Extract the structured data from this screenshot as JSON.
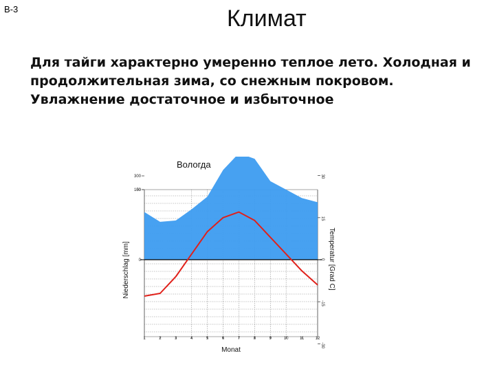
{
  "slide": {
    "code": "В-3",
    "title": "Климат",
    "text_lines": [
      "Для тайги характерно умеренно теплое лето. Холодная и",
      "продолжительная зима,  со снежным покровом.",
      "Увлажнение достаточное и избыточное"
    ]
  },
  "chart_data": {
    "type": "area",
    "title": "Вологда",
    "xlabel": "Monat",
    "ylabel_left": "Niederschlag [mm]",
    "ylabel_right": "Temperatur [Grad C]",
    "x": [
      1,
      2,
      3,
      4,
      5,
      6,
      7,
      8,
      9,
      10,
      11,
      12
    ],
    "x_tick_labels": [
      "1",
      "2",
      "3",
      "4",
      "5",
      "6",
      "7",
      "8",
      "9",
      "10",
      "11",
      "12"
    ],
    "left_ticks": [
      "300",
      "100",
      "50",
      "0"
    ],
    "right_ticks": [
      "30",
      "15",
      "0",
      "-15",
      "-30"
    ],
    "series": [
      {
        "values": [
          34,
          27,
          28,
          36,
          45,
          64,
          76,
          72,
          56,
          50,
          44,
          41
        ],
        "color": "#3d9cf0"
      },
      {
        "values": [
          -13,
          -12,
          -6,
          2,
          10,
          15,
          17,
          14,
          8,
          2,
          -4,
          -9
        ],
        "color": "#e0201a"
      }
    ],
    "grid": true
  }
}
